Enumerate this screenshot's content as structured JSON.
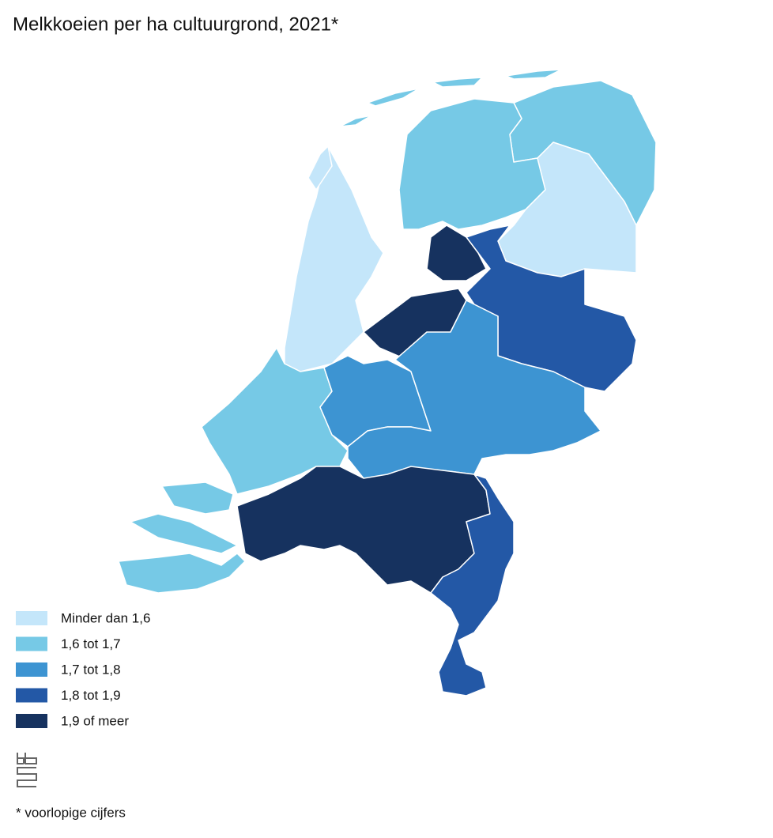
{
  "map": {
    "title": "Melkkoeien per ha cultuurgrond, 2021*",
    "legend": [
      {
        "label": "Minder dan 1,6",
        "color": "#c4e6fa"
      },
      {
        "label": "1,6 tot 1,7",
        "color": "#76c9e6"
      },
      {
        "label": "1,7 tot 1,8",
        "color": "#3d94d2"
      },
      {
        "label": "1,8 tot 1,9",
        "color": "#2358a6"
      },
      {
        "label": "1,9 of meer",
        "color": "#16325f"
      }
    ],
    "regions": [
      {
        "class": 1
      },
      {
        "class": 1
      },
      {
        "class": 0
      },
      {
        "class": 3
      },
      {
        "class": 4
      },
      {
        "class": 4
      },
      {
        "class": 0
      },
      {
        "class": 0
      },
      {
        "class": 1
      },
      {
        "class": 2
      },
      {
        "class": 2
      },
      {
        "class": 4
      },
      {
        "class": 3
      },
      {
        "class": 1
      },
      {
        "class": 1
      },
      {
        "class": 1
      },
      {
        "class": 1
      },
      {
        "class": 1
      },
      {
        "class": 1
      },
      {
        "class": 1
      }
    ],
    "footnote": "* voorlopige cijfers"
  }
}
